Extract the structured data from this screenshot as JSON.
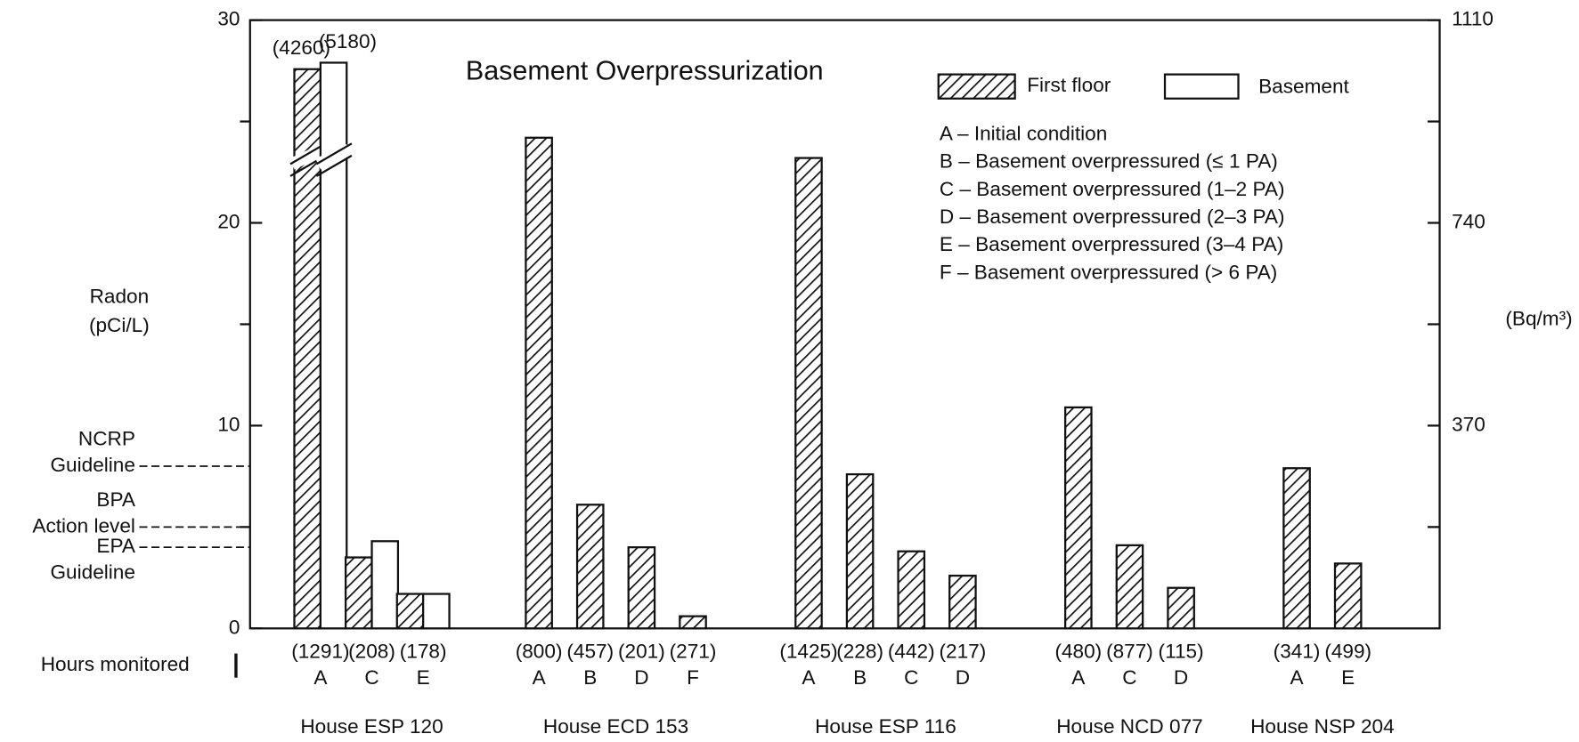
{
  "chart_data": {
    "type": "bar",
    "title": "Basement Overpressurization",
    "y_label": [
      "Radon",
      "(pCi/L)"
    ],
    "y2_label": "(Bq/m³)",
    "x_label": "Hours monitored",
    "ylim": [
      0,
      30
    ],
    "yticks": [
      0,
      10,
      20,
      30
    ],
    "yminor": [
      5,
      15,
      25
    ],
    "y2lim": [
      0,
      1110
    ],
    "y2ticks": [
      370,
      740,
      1110
    ],
    "y2minor": [
      185,
      555,
      925
    ],
    "series": [
      {
        "name": "First floor",
        "color": "#111111",
        "hatch": true
      },
      {
        "name": "Basement",
        "color": "#ffffff",
        "hatch": false
      }
    ],
    "groups": [
      {
        "name": "House ESP 120",
        "categories": [
          "A",
          "C",
          "E"
        ],
        "hours_monitored": [
          "(1291)",
          "(208)",
          "(178)"
        ],
        "first_floor": [
          4260,
          3.5,
          1.7
        ],
        "first_floor_labels": [
          "(4260)",
          null,
          null
        ],
        "basement": [
          5180,
          4.3,
          1.7
        ],
        "basement_labels": [
          "(5180)",
          null,
          null
        ]
      },
      {
        "name": "House ECD 153",
        "categories": [
          "A",
          "B",
          "D",
          "F"
        ],
        "hours_monitored": [
          "(800)",
          "(457)",
          "(201)",
          "(271)"
        ],
        "first_floor": [
          24.2,
          6.1,
          4.0,
          0.6
        ],
        "basement": [
          null,
          null,
          null,
          null
        ]
      },
      {
        "name": "House ESP 116",
        "categories": [
          "A",
          "B",
          "C",
          "D"
        ],
        "hours_monitored": [
          "(1425)",
          "(228)",
          "(442)",
          "(217)"
        ],
        "first_floor": [
          23.2,
          7.6,
          3.8,
          2.6
        ],
        "basement": [
          null,
          null,
          null,
          null
        ]
      },
      {
        "name": "House NCD 077",
        "categories": [
          "A",
          "C",
          "D"
        ],
        "hours_monitored": [
          "(480)",
          "(877)",
          "(115)"
        ],
        "first_floor": [
          10.9,
          4.1,
          2.0
        ],
        "basement": [
          null,
          null,
          null
        ]
      },
      {
        "name": "House NSP 204",
        "categories": [
          "A",
          "E"
        ],
        "hours_monitored": [
          "(341)",
          "(499)"
        ],
        "first_floor": [
          7.9,
          3.2
        ],
        "basement": [
          null,
          null
        ]
      }
    ],
    "conditions": [
      "A – Initial condition",
      "B – Basement overpressured (≤ 1 PA)",
      "C – Basement overpressured (1–2 PA)",
      "D – Basement overpressured (2–3 PA)",
      "E – Basement overpressured (3–4 PA)",
      "F – Basement overpressured (> 6 PA)"
    ],
    "reference_lines": [
      {
        "label": [
          "NCRP",
          "Guideline"
        ],
        "value": 8
      },
      {
        "label": [
          "BPA",
          "Action level"
        ],
        "value": 5
      },
      {
        "label": [
          "EPA",
          "Guideline"
        ],
        "value": 4
      }
    ]
  }
}
